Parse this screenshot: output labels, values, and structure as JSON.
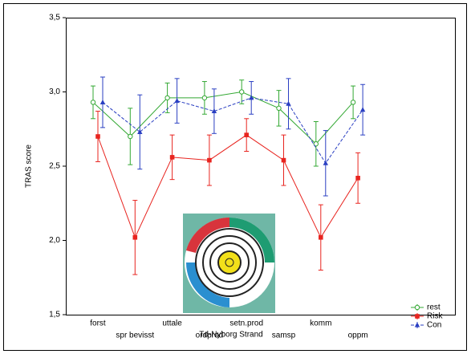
{
  "chart_data": {
    "type": "line",
    "y_label": "TRAS score",
    "categories": [
      "forst",
      "spr bevisst",
      "uttale",
      "ordprod",
      "setn.prod",
      "samsp",
      "komm",
      "oppm"
    ],
    "ylim": [
      1.5,
      3.5
    ],
    "yticks": [
      {
        "value": 1.5,
        "label": "1,5"
      },
      {
        "value": 2.0,
        "label": "2,0"
      },
      {
        "value": 2.5,
        "label": "2,5"
      },
      {
        "value": 3.0,
        "label": "3,0"
      },
      {
        "value": 3.5,
        "label": "3,5"
      }
    ],
    "inset_caption": "Td-Nyborg Strand",
    "legend": "bottom-right",
    "series": [
      {
        "name": "rest",
        "color": "#33a833",
        "marker": "circle",
        "dashed": false,
        "values": [
          2.93,
          2.7,
          2.96,
          2.96,
          3.0,
          2.89,
          2.65,
          2.93
        ],
        "errors": [
          0.11,
          0.19,
          0.1,
          0.11,
          0.08,
          0.12,
          0.15,
          0.11
        ]
      },
      {
        "name": "Risk",
        "color": "#e8241f",
        "marker": "square",
        "dashed": false,
        "values": [
          2.7,
          2.02,
          2.56,
          2.54,
          2.71,
          2.54,
          2.02,
          2.42
        ],
        "errors": [
          0.17,
          0.25,
          0.15,
          0.17,
          0.11,
          0.17,
          0.22,
          0.17
        ]
      },
      {
        "name": "Con",
        "color": "#2a3fc2",
        "marker": "triangle",
        "dashed": true,
        "values": [
          2.93,
          2.73,
          2.94,
          2.87,
          2.96,
          2.92,
          2.52,
          2.88
        ],
        "errors": [
          0.17,
          0.25,
          0.15,
          0.15,
          0.11,
          0.17,
          0.22,
          0.17
        ]
      }
    ]
  }
}
